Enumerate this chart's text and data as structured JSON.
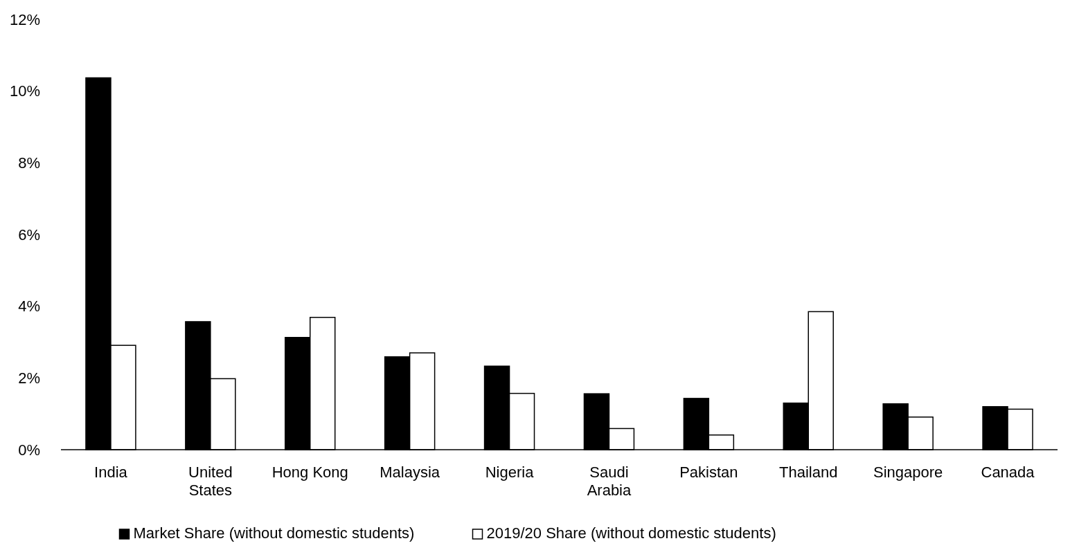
{
  "chart_data": {
    "type": "bar",
    "categories": [
      "India",
      "United States",
      "Hong Kong",
      "Malaysia",
      "Nigeria",
      "Saudi Arabia",
      "Pakistan",
      "Thailand",
      "Singapore",
      "Canada"
    ],
    "series": [
      {
        "name": "Market Share (without domestic students)",
        "color": "#000000",
        "values": [
          10.37,
          3.57,
          3.13,
          2.59,
          2.33,
          1.56,
          1.43,
          1.3,
          1.28,
          1.2
        ]
      },
      {
        "name": "2019/20 Share (without domestic students)",
        "color": "#ffffff",
        "values": [
          2.91,
          1.98,
          3.69,
          2.7,
          1.57,
          0.59,
          0.41,
          3.85,
          0.91,
          1.13
        ]
      }
    ],
    "ylim": [
      0,
      12
    ],
    "yticks": [
      {
        "value": 0,
        "label": "0%"
      },
      {
        "value": 2,
        "label": "2%"
      },
      {
        "value": 4,
        "label": "4%"
      },
      {
        "value": 6,
        "label": "6%"
      },
      {
        "value": 8,
        "label": "8%"
      },
      {
        "value": 10,
        "label": "10%"
      },
      {
        "value": 12,
        "label": "12%"
      }
    ],
    "grid": false,
    "legend": "bottom"
  }
}
